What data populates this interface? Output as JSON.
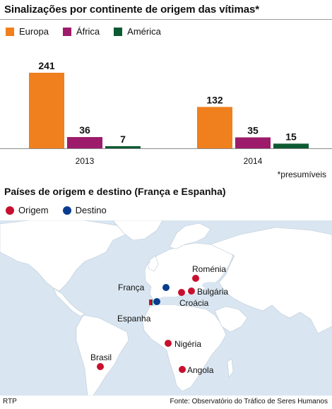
{
  "title": "Sinalizações por continente de origem das vítimas*",
  "legend": [
    {
      "label": "Europa",
      "color": "#f07f1e"
    },
    {
      "label": "África",
      "color": "#9c1b6b"
    },
    {
      "label": "América",
      "color": "#0d5a32"
    }
  ],
  "chart_data": {
    "type": "bar",
    "categories": [
      "2013",
      "2014"
    ],
    "series": [
      {
        "name": "Europa",
        "values": [
          241,
          132
        ],
        "color": "#f07f1e"
      },
      {
        "name": "África",
        "values": [
          36,
          35
        ],
        "color": "#9c1b6b"
      },
      {
        "name": "América",
        "values": [
          7,
          15
        ],
        "color": "#0d5a32"
      }
    ],
    "ylim": [
      0,
      241
    ]
  },
  "footnote": "*presumíveis",
  "map": {
    "title": "Países de origem e destino (França e Espanha)",
    "legend": [
      {
        "label": "Origem",
        "color": "#c8102e"
      },
      {
        "label": "Destino",
        "color": "#0a3d91"
      }
    ],
    "labels": {
      "romenia": "Roménia",
      "franca": "França",
      "bulgaria": "Bulgária",
      "croacia": "Croácia",
      "espanha": "Espanha",
      "nigeria": "Nigéria",
      "brasil": "Brasil",
      "angola": "Angola"
    }
  },
  "footer": {
    "left": "RTP",
    "right": "Fonte: Observatório do Tráfico de Seres Humanos"
  }
}
